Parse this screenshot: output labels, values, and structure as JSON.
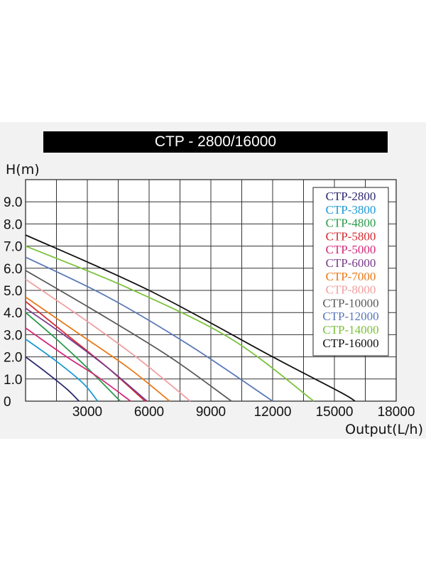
{
  "chart_data": {
    "type": "line",
    "title": "CTP - 2800/16000",
    "ylabel": "H(m)",
    "xlabel": "Output(L/h)",
    "x_ticks": [
      "3000",
      "6000",
      "9000",
      "12000",
      "15000",
      "18000"
    ],
    "y_ticks": [
      "0",
      "1.0",
      "2.0",
      "3.0",
      "4.0",
      "5.0",
      "6.0",
      "7.0",
      "8.0",
      "9.0"
    ],
    "xlim": [
      0,
      18000
    ],
    "ylim": [
      0,
      10
    ],
    "grid": true,
    "legend_position": "top-right",
    "series": [
      {
        "name": "CTP-2800",
        "color": "#2a2a6e",
        "x": [
          0,
          1000,
          2000,
          2600
        ],
        "y": [
          2.0,
          1.3,
          0.55,
          0
        ]
      },
      {
        "name": "CTP-3800",
        "color": "#1a9ad6",
        "x": [
          0,
          1500,
          2800,
          3500
        ],
        "y": [
          2.8,
          1.8,
          0.8,
          0
        ]
      },
      {
        "name": "CTP-4800",
        "color": "#2a9a4a",
        "x": [
          0,
          1500,
          3000,
          4600
        ],
        "y": [
          4.0,
          2.8,
          1.5,
          0
        ]
      },
      {
        "name": "CTP-5800",
        "color": "#d42a30",
        "x": [
          0,
          2000,
          4000,
          5800
        ],
        "y": [
          4.5,
          3.0,
          1.5,
          0
        ]
      },
      {
        "name": "CTP-5000",
        "color": "#d4287a",
        "x": [
          0,
          2000,
          3500,
          5100
        ],
        "y": [
          3.3,
          2.0,
          1.1,
          0
        ]
      },
      {
        "name": "CTP-6000",
        "color": "#7a3a8a",
        "x": [
          0,
          2000,
          4000,
          5900
        ],
        "y": [
          4.2,
          2.9,
          1.5,
          0
        ]
      },
      {
        "name": "CTP-7000",
        "color": "#e87a1a",
        "x": [
          0,
          2500,
          5000,
          7000
        ],
        "y": [
          4.7,
          3.1,
          1.5,
          0
        ]
      },
      {
        "name": "CTP-8000",
        "color": "#f0a0a0",
        "x": [
          0,
          3000,
          5500,
          8000
        ],
        "y": [
          5.5,
          3.6,
          1.9,
          0
        ]
      },
      {
        "name": "CTP-10000",
        "color": "#5a5a5a",
        "x": [
          0,
          3500,
          7000,
          10000
        ],
        "y": [
          5.9,
          4.0,
          2.0,
          0
        ]
      },
      {
        "name": "CTP-12000",
        "color": "#5a78b8",
        "x": [
          0,
          4000,
          8000,
          12000
        ],
        "y": [
          6.5,
          4.7,
          2.5,
          0
        ]
      },
      {
        "name": "CTP-14000",
        "color": "#7ac23a",
        "x": [
          0,
          5000,
          10000,
          14000
        ],
        "y": [
          7.0,
          5.1,
          2.8,
          0
        ]
      },
      {
        "name": "CTP-16000",
        "color": "#111111",
        "x": [
          0,
          6000,
          12000,
          15300,
          16000
        ],
        "y": [
          7.5,
          5.0,
          2.0,
          0.4,
          0
        ]
      }
    ]
  }
}
